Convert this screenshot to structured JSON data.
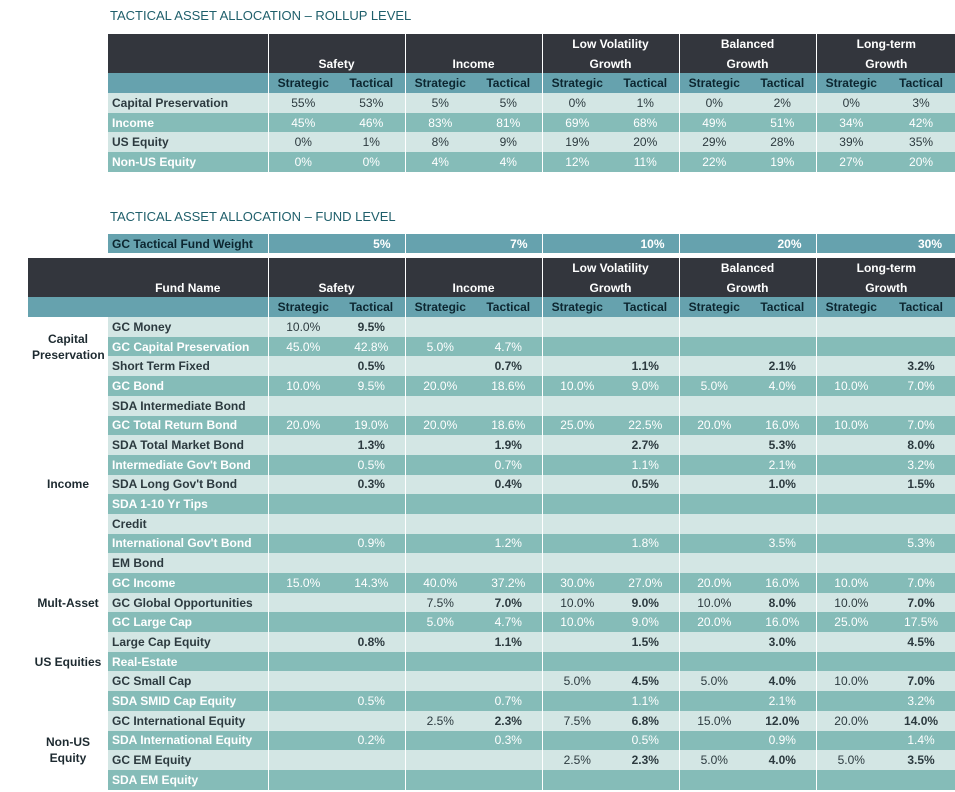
{
  "rollup": {
    "title": "TACTICAL ASSET ALLOCATION – ROLLUP LEVEL",
    "groups": [
      {
        "line1": "",
        "line2": "Safety"
      },
      {
        "line1": "",
        "line2": "Income"
      },
      {
        "line1": "Low Volatility",
        "line2": "Growth"
      },
      {
        "line1": "Balanced",
        "line2": "Growth"
      },
      {
        "line1": "Long-term",
        "line2": "Growth"
      }
    ],
    "sub_strategic": "Strategic",
    "sub_tactical": "Tactical",
    "rows": [
      {
        "label": "Capital Preservation",
        "values": [
          "55%",
          "53%",
          "5%",
          "5%",
          "0%",
          "1%",
          "0%",
          "2%",
          "0%",
          "3%"
        ]
      },
      {
        "label": "Income",
        "values": [
          "45%",
          "46%",
          "83%",
          "81%",
          "69%",
          "68%",
          "49%",
          "51%",
          "34%",
          "42%"
        ]
      },
      {
        "label": "US Equity",
        "values": [
          "0%",
          "1%",
          "8%",
          "9%",
          "19%",
          "20%",
          "29%",
          "28%",
          "39%",
          "35%"
        ]
      },
      {
        "label": "Non-US Equity",
        "values": [
          "0%",
          "0%",
          "4%",
          "4%",
          "12%",
          "11%",
          "22%",
          "19%",
          "27%",
          "20%"
        ]
      }
    ]
  },
  "fund": {
    "title": "TACTICAL ASSET ALLOCATION – FUND LEVEL",
    "weight_label": "GC Tactical Fund Weight",
    "weights": [
      "5%",
      "7%",
      "10%",
      "20%",
      "30%"
    ],
    "fund_name_header": "Fund Name",
    "categories": {
      "capital": [
        "Capital",
        "Preservation"
      ],
      "income": "Income",
      "multi": "Mult-Asset",
      "us": "US Equities",
      "nonus": [
        "Non-US",
        "Equity"
      ]
    },
    "rows": [
      {
        "name": "GC Money",
        "values": [
          "10.0%",
          "9.5%",
          "",
          "",
          "",
          "",
          "",
          "",
          "",
          ""
        ]
      },
      {
        "name": "GC Capital Preservation",
        "values": [
          "45.0%",
          "42.8%",
          "5.0%",
          "4.7%",
          "",
          "",
          "",
          "",
          "",
          ""
        ]
      },
      {
        "name": "Short Term Fixed",
        "values": [
          "",
          "0.5%",
          "",
          "0.7%",
          "",
          "1.1%",
          "",
          "2.1%",
          "",
          "3.2%"
        ]
      },
      {
        "name": "GC Bond",
        "values": [
          "10.0%",
          "9.5%",
          "20.0%",
          "18.6%",
          "10.0%",
          "9.0%",
          "5.0%",
          "4.0%",
          "10.0%",
          "7.0%"
        ]
      },
      {
        "name": "SDA Intermediate Bond",
        "values": [
          "",
          "",
          "",
          "",
          "",
          "",
          "",
          "",
          "",
          ""
        ]
      },
      {
        "name": "GC Total Return Bond",
        "values": [
          "20.0%",
          "19.0%",
          "20.0%",
          "18.6%",
          "25.0%",
          "22.5%",
          "20.0%",
          "16.0%",
          "10.0%",
          "7.0%"
        ]
      },
      {
        "name": "SDA Total Market Bond",
        "values": [
          "",
          "1.3%",
          "",
          "1.9%",
          "",
          "2.7%",
          "",
          "5.3%",
          "",
          "8.0%"
        ]
      },
      {
        "name": "Intermediate Gov't Bond",
        "values": [
          "",
          "0.5%",
          "",
          "0.7%",
          "",
          "1.1%",
          "",
          "2.1%",
          "",
          "3.2%"
        ]
      },
      {
        "name": "SDA Long Gov't Bond",
        "values": [
          "",
          "0.3%",
          "",
          "0.4%",
          "",
          "0.5%",
          "",
          "1.0%",
          "",
          "1.5%"
        ]
      },
      {
        "name": "SDA 1-10 Yr Tips",
        "values": [
          "",
          "",
          "",
          "",
          "",
          "",
          "",
          "",
          "",
          ""
        ]
      },
      {
        "name": "Credit",
        "values": [
          "",
          "",
          "",
          "",
          "",
          "",
          "",
          "",
          "",
          ""
        ]
      },
      {
        "name": "International Gov't Bond",
        "values": [
          "",
          "0.9%",
          "",
          "1.2%",
          "",
          "1.8%",
          "",
          "3.5%",
          "",
          "5.3%"
        ]
      },
      {
        "name": "EM Bond",
        "values": [
          "",
          "",
          "",
          "",
          "",
          "",
          "",
          "",
          "",
          ""
        ]
      },
      {
        "name": "GC Income",
        "values": [
          "15.0%",
          "14.3%",
          "40.0%",
          "37.2%",
          "30.0%",
          "27.0%",
          "20.0%",
          "16.0%",
          "10.0%",
          "7.0%"
        ]
      },
      {
        "name": "GC Global Opportunities",
        "values": [
          "",
          "",
          "7.5%",
          "7.0%",
          "10.0%",
          "9.0%",
          "10.0%",
          "8.0%",
          "10.0%",
          "7.0%"
        ]
      },
      {
        "name": "GC Large Cap",
        "values": [
          "",
          "",
          "5.0%",
          "4.7%",
          "10.0%",
          "9.0%",
          "20.0%",
          "16.0%",
          "25.0%",
          "17.5%"
        ]
      },
      {
        "name": "Large Cap Equity",
        "values": [
          "",
          "0.8%",
          "",
          "1.1%",
          "",
          "1.5%",
          "",
          "3.0%",
          "",
          "4.5%"
        ]
      },
      {
        "name": "Real-Estate",
        "values": [
          "",
          "",
          "",
          "",
          "",
          "",
          "",
          "",
          "",
          ""
        ]
      },
      {
        "name": "GC Small Cap",
        "values": [
          "",
          "",
          "",
          "",
          "5.0%",
          "4.5%",
          "5.0%",
          "4.0%",
          "10.0%",
          "7.0%"
        ]
      },
      {
        "name": "SDA SMID Cap Equity",
        "values": [
          "",
          "0.5%",
          "",
          "0.7%",
          "",
          "1.1%",
          "",
          "2.1%",
          "",
          "3.2%"
        ]
      },
      {
        "name": "GC International Equity",
        "values": [
          "",
          "",
          "2.5%",
          "2.3%",
          "7.5%",
          "6.8%",
          "15.0%",
          "12.0%",
          "20.0%",
          "14.0%"
        ]
      },
      {
        "name": "SDA International Equity",
        "values": [
          "",
          "0.2%",
          "",
          "0.3%",
          "",
          "0.5%",
          "",
          "0.9%",
          "",
          "1.4%"
        ]
      },
      {
        "name": "GC EM Equity",
        "values": [
          "",
          "",
          "",
          "",
          "2.5%",
          "2.3%",
          "5.0%",
          "4.0%",
          "5.0%",
          "3.5%"
        ]
      },
      {
        "name": "SDA EM Equity",
        "values": [
          "",
          "",
          "",
          "",
          "",
          "",
          "",
          "",
          "",
          ""
        ]
      }
    ]
  },
  "colors": {
    "title": "#1f5f6b",
    "header_dark": "#33363d",
    "band_blue": "#66a2ae",
    "row_light": "#d3e6e4",
    "row_dark": "#85bcb8"
  }
}
